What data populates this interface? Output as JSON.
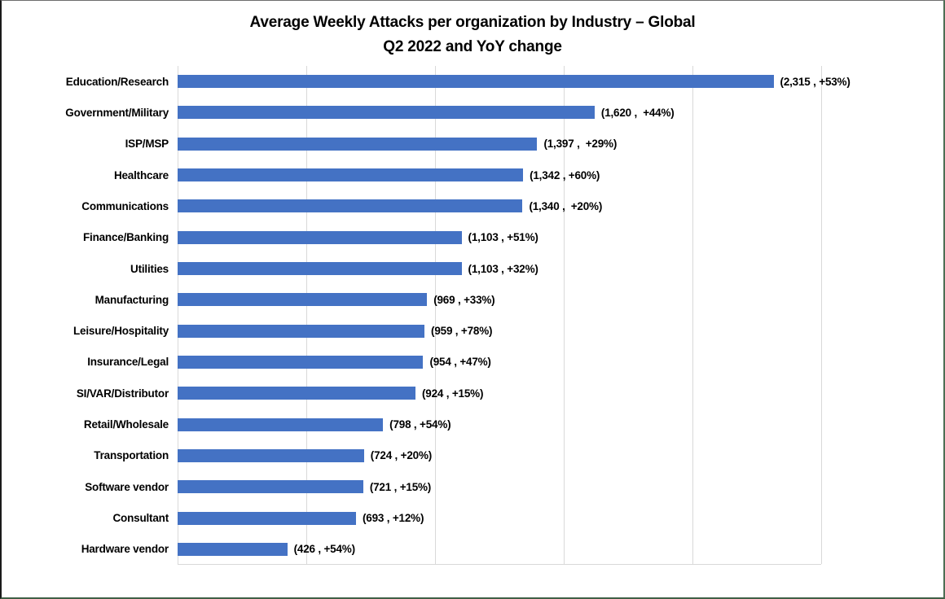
{
  "title": {
    "line1": "Average Weekly Attacks per organization by Industry – Global",
    "line2": "Q2 2022 and YoY change"
  },
  "chart_data": {
    "type": "bar",
    "orientation": "horizontal",
    "title": "Average Weekly Attacks per organization by Industry – Global Q2 2022 and YoY change",
    "xlabel": "",
    "ylabel": "",
    "categories": [
      "Education/Research",
      "Government/Military",
      "ISP/MSP",
      "Healthcare",
      "Communications",
      "Finance/Banking",
      "Utilities",
      "Manufacturing",
      "Leisure/Hospitality",
      "Insurance/Legal",
      "SI/VAR/Distributor",
      "Retail/Wholesale",
      "Transportation",
      "Software vendor",
      "Consultant",
      "Hardware vendor"
    ],
    "values": [
      2315,
      1620,
      1397,
      1342,
      1340,
      1103,
      1103,
      969,
      959,
      954,
      924,
      798,
      724,
      721,
      693,
      426
    ],
    "yoy_change_pct": [
      53,
      44,
      29,
      60,
      20,
      51,
      32,
      33,
      78,
      47,
      15,
      54,
      20,
      15,
      12,
      54
    ],
    "data_labels": [
      "(2,315 , +53%)",
      "(1,620 ,  +44%)",
      "(1,397 ,  +29%)",
      "(1,342 , +60%)",
      "(1,340 ,  +20%)",
      "(1,103 , +51%)",
      "(1,103 , +32%)",
      "(969 , +33%)",
      "(959 , +78%)",
      "(954 , +47%)",
      "(924 , +15%)",
      "(798 , +54%)",
      "(724 , +20%)",
      "(721 , +15%)",
      "(693 , +12%)",
      "(426 , +54%)"
    ],
    "xlim": [
      0,
      2500
    ],
    "gridline_step": 500,
    "grid": "vertical-only",
    "axis_tick_labels_visible": false,
    "legend": "none",
    "colors": {
      "bar": "#4472C4",
      "gridline": "#D9D9D9",
      "text": "#000000",
      "background": "#FFFFFF"
    }
  }
}
